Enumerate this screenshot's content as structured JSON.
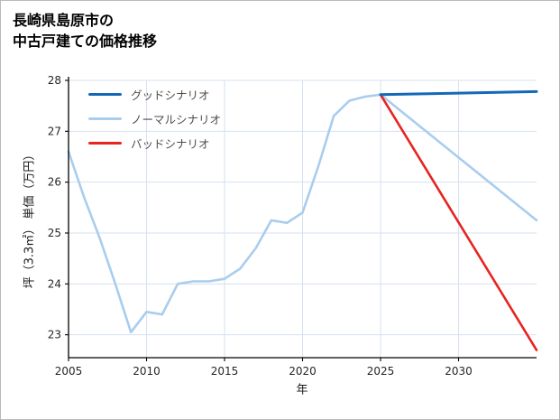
{
  "title": {
    "line1": "長崎県島原市の",
    "line2": "中古戸建ての価格推移"
  },
  "chart_data": {
    "type": "line",
    "title": "長崎県島原市の中古戸建ての価格推移",
    "xlabel": "年",
    "ylabel": "坪（3.3㎡） 単価（万円）",
    "xlim": [
      2005,
      2035
    ],
    "ylim": [
      22.55,
      28
    ],
    "xticks": [
      2005,
      2010,
      2015,
      2020,
      2025,
      2030
    ],
    "yticks": [
      23,
      24,
      25,
      26,
      27,
      28
    ],
    "grid": true,
    "legend_position": "upper-left",
    "colors": {
      "grid": "#d5e1f2",
      "axis": "#000000",
      "tick_label": "#262626",
      "legend_text": "#4d4d4d",
      "background": "#ffffff"
    },
    "series": [
      {
        "name": "グッドシナリオ",
        "color": "#1568b8",
        "width": 3,
        "x": [
          2025,
          2035
        ],
        "y": [
          27.72,
          27.78
        ]
      },
      {
        "name": "ノーマルシナリオ",
        "color": "#a9cdee",
        "width": 2.6,
        "x": [
          2005,
          2006,
          2007,
          2008,
          2009,
          2010,
          2011,
          2012,
          2013,
          2014,
          2015,
          2016,
          2017,
          2018,
          2019,
          2020,
          2021,
          2022,
          2023,
          2024,
          2025,
          2035
        ],
        "y": [
          26.6,
          25.7,
          24.9,
          24.0,
          23.05,
          23.45,
          23.4,
          24.0,
          24.05,
          24.05,
          24.1,
          24.3,
          24.7,
          25.25,
          25.2,
          25.4,
          26.3,
          27.3,
          27.6,
          27.68,
          27.72,
          25.25
        ]
      },
      {
        "name": "バッドシナリオ",
        "color": "#e82320",
        "width": 2.6,
        "x": [
          2025,
          2035
        ],
        "y": [
          27.72,
          22.7
        ]
      }
    ]
  }
}
